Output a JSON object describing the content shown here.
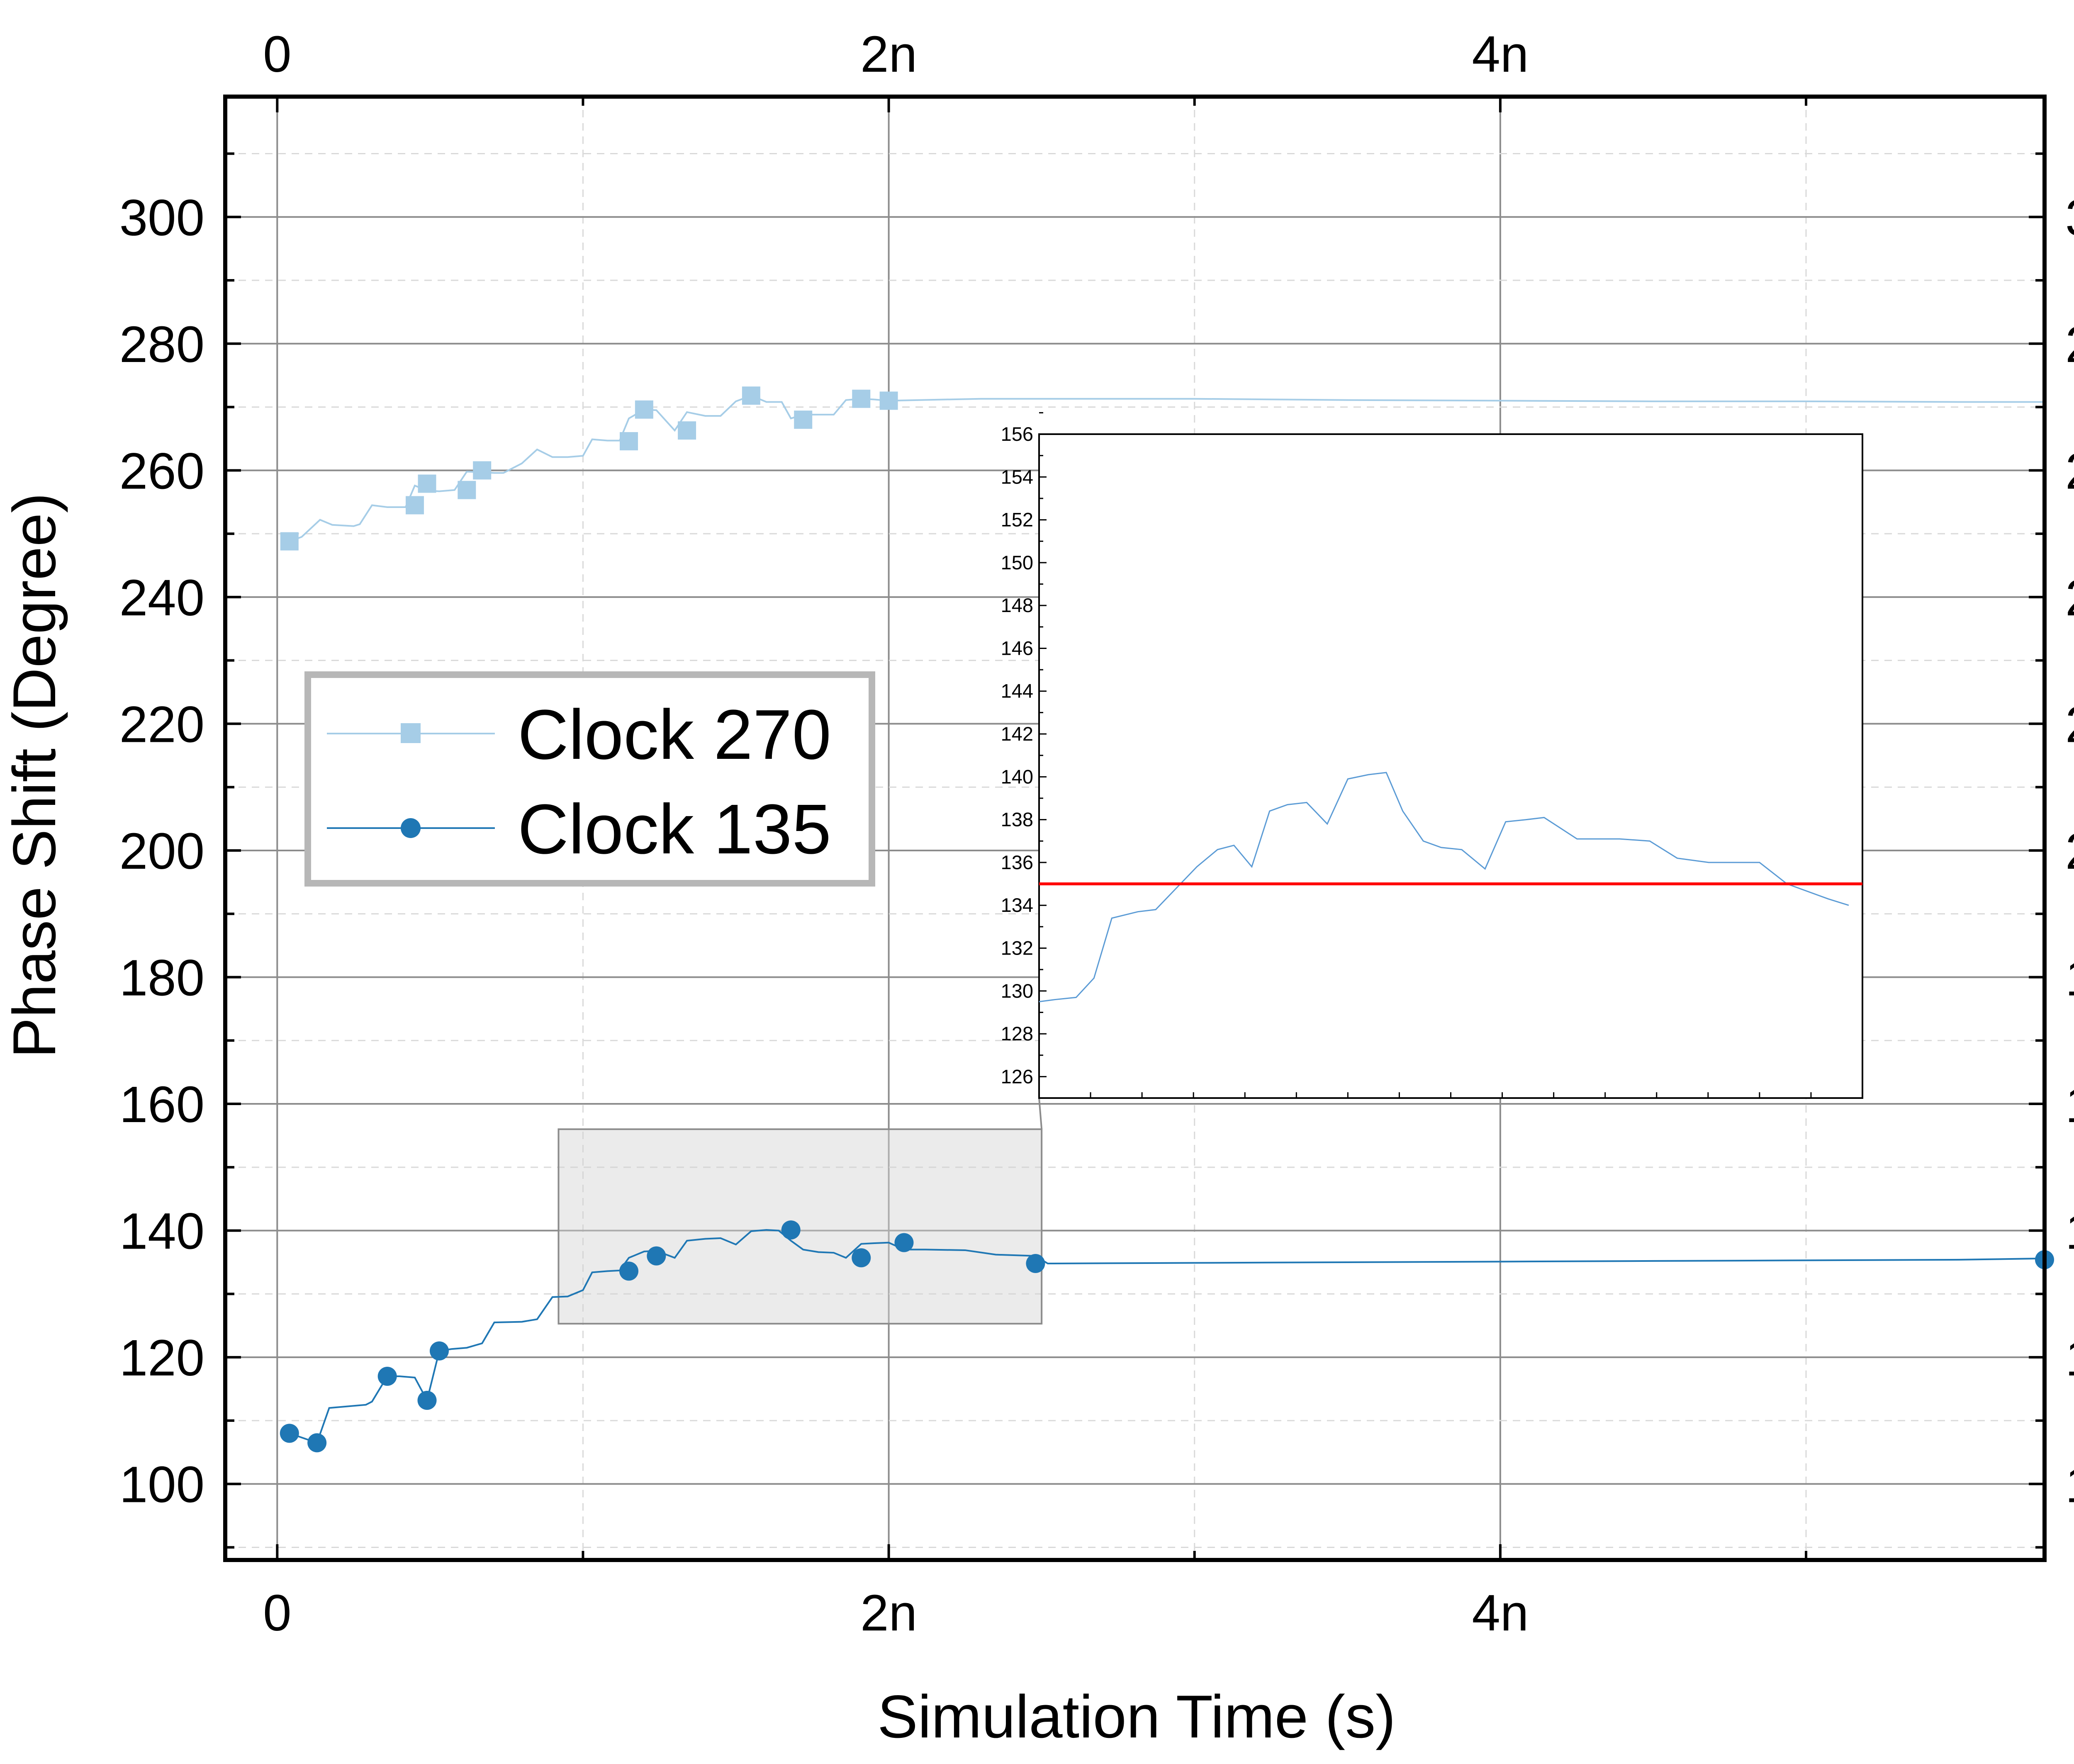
{
  "chart_data": {
    "type": "line",
    "xlabel": "Simulation Time (s)",
    "ylabel": "Phase Shift (Degree)",
    "xlim": [
      -1.7e-10,
      5.78e-09
    ],
    "ylim": [
      88,
      319
    ],
    "x_ticks": [
      0,
      2e-09,
      4e-09
    ],
    "x_tick_labels": [
      "0",
      "2n",
      "4n"
    ],
    "y_ticks": [
      100,
      120,
      140,
      160,
      180,
      200,
      220,
      240,
      260,
      280,
      300
    ],
    "y_tick_labels": [
      "100",
      "120",
      "140",
      "160",
      "180",
      "200",
      "220",
      "240",
      "260",
      "280",
      "300"
    ],
    "grid": true,
    "legend_position": "center-left",
    "series": [
      {
        "name": "Clock 270",
        "color": "#a6cde7",
        "marker": "square",
        "x": [
          4e-11,
          8e-11,
          1.4e-10,
          1.8e-10,
          2.5e-10,
          2.7e-10,
          3.1e-10,
          3.6e-10,
          4.2e-10,
          4.5e-10,
          4.9e-10,
          5.3e-10,
          5.8e-10,
          6.2e-10,
          6.7e-10,
          7.1e-10,
          7.4e-10,
          8e-10,
          8.5e-10,
          9e-10,
          9.5e-10,
          1e-09,
          1.03e-09,
          1.08e-09,
          1.12e-09,
          1.15e-09,
          1.2e-09,
          1.24e-09,
          1.3e-09,
          1.34e-09,
          1.4e-09,
          1.45e-09,
          1.5e-09,
          1.55e-09,
          1.6e-09,
          1.65e-09,
          1.68e-09,
          1.72e-09,
          1.77e-09,
          1.82e-09,
          1.86e-09,
          1.91e-09,
          1.95e-09,
          2e-09,
          2.3e-09,
          3e-09,
          3.5e-09,
          4e-09,
          4.5e-09,
          5e-09,
          5.5e-09,
          5.78e-09
        ],
        "y": [
          248.8,
          249.5,
          252.2,
          251.4,
          251.2,
          251.5,
          254.5,
          254.2,
          254.2,
          257.6,
          256.8,
          256.7,
          256.9,
          259.8,
          259.7,
          259.6,
          259.6,
          261.1,
          263.3,
          262.1,
          262.1,
          262.3,
          264.9,
          264.7,
          264.7,
          268.2,
          269.6,
          269.5,
          266.3,
          269.2,
          268.6,
          268.6,
          270.9,
          271.8,
          270.8,
          270.8,
          268.2,
          268.8,
          268.8,
          268.8,
          271.1,
          271.3,
          271.2,
          271.0,
          271.3,
          271.3,
          271.1,
          271.0,
          270.9,
          270.9,
          270.8,
          270.8
        ],
        "markers_x": [
          4e-11,
          4.5e-10,
          4.9e-10,
          6.2e-10,
          6.7e-10,
          1.15e-09,
          1.2e-09,
          1.34e-09,
          1.55e-09,
          1.72e-09,
          1.91e-09,
          2e-09
        ],
        "markers_y": [
          248.8,
          254.5,
          257.9,
          256.9,
          260.0,
          264.6,
          269.6,
          266.3,
          271.8,
          268.0,
          271.3,
          271.0
        ]
      },
      {
        "name": "Clock 135",
        "color": "#1f77b4",
        "marker": "circle",
        "x": [
          4e-11,
          1.3e-10,
          1.7e-10,
          2.9e-10,
          3.1e-10,
          3.6e-10,
          4e-10,
          4.5e-10,
          4.9e-10,
          5.3e-10,
          5.7e-10,
          6.2e-10,
          6.7e-10,
          7.1e-10,
          8e-10,
          8.5e-10,
          9e-10,
          9.5e-10,
          1e-09,
          1.03e-09,
          1.08e-09,
          1.12e-09,
          1.15e-09,
          1.2e-09,
          1.24e-09,
          1.3e-09,
          1.34e-09,
          1.4e-09,
          1.45e-09,
          1.5e-09,
          1.55e-09,
          1.6e-09,
          1.64e-09,
          1.68e-09,
          1.72e-09,
          1.77e-09,
          1.82e-09,
          1.86e-09,
          1.91e-09,
          1.95e-09,
          2e-09,
          2.05e-09,
          2.12e-09,
          2.25e-09,
          2.35e-09,
          2.48e-09,
          2.52e-09,
          3e-09,
          3.5e-09,
          4e-09,
          4.5e-09,
          5e-09,
          5.5e-09,
          5.78e-09
        ],
        "y": [
          108.0,
          106.5,
          112.0,
          112.5,
          113.0,
          117.0,
          117.0,
          116.8,
          113.2,
          121.0,
          121.3,
          121.5,
          122.2,
          125.5,
          125.6,
          126.0,
          129.5,
          129.6,
          130.6,
          133.4,
          133.6,
          133.7,
          135.7,
          136.7,
          136.8,
          135.7,
          138.4,
          138.7,
          138.8,
          137.8,
          139.9,
          140.1,
          140.0,
          138.4,
          137.0,
          136.6,
          136.5,
          135.7,
          137.9,
          138.0,
          138.1,
          137.0,
          137.0,
          136.9,
          136.2,
          136.0,
          134.8,
          134.9,
          135.0,
          135.1,
          135.2,
          135.3,
          135.4,
          135.6
        ],
        "markers_x": [
          4e-11,
          1.3e-10,
          3.6e-10,
          4.9e-10,
          5.3e-10,
          1.15e-09,
          1.24e-09,
          1.68e-09,
          1.91e-09,
          2.05e-09,
          2.48e-09,
          5.78e-09
        ],
        "markers_y": [
          108.0,
          106.5,
          117.0,
          113.2,
          121.0,
          133.6,
          136.0,
          140.1,
          135.7,
          138.1,
          134.8,
          135.4
        ]
      }
    ],
    "zoom_region": {
      "xlim": [
        9.2e-10,
        2.5e-09
      ],
      "ylim": [
        125.3,
        156
      ]
    },
    "inset": {
      "type": "line",
      "ylim": [
        125,
        156
      ],
      "y_ticks": [
        126,
        128,
        130,
        132,
        134,
        136,
        138,
        140,
        142,
        144,
        146,
        148,
        150,
        152,
        154,
        156
      ],
      "y_tick_labels": [
        "126",
        "128",
        "130",
        "132",
        "134",
        "136",
        "138",
        "140",
        "142",
        "144",
        "146",
        "148",
        "150",
        "152",
        "154",
        "156"
      ],
      "x_minor_ticks": 16,
      "reference_line": {
        "y": 135,
        "color": "#ff0000"
      },
      "series": {
        "color": "#5b9bd5",
        "x": [
          0,
          1.2,
          2.7,
          4,
          5.3,
          7.2,
          8.5,
          10,
          11.5,
          13,
          14.2,
          15.5,
          16.8,
          18.1,
          19.5,
          21,
          22.5,
          24,
          25.3,
          26.5,
          28,
          29.3,
          30.8,
          32.5,
          34,
          35.5,
          36.8,
          38,
          39.2,
          40.8,
          42.3,
          44.5,
          46.5,
          48.8,
          51,
          52.5,
          54.5,
          57.5,
          59
        ],
        "y": [
          129.5,
          129.6,
          129.7,
          130.6,
          133.4,
          133.7,
          133.8,
          134.8,
          135.8,
          136.6,
          136.8,
          135.8,
          138.4,
          138.7,
          138.8,
          137.8,
          139.9,
          140.1,
          140.2,
          138.4,
          137.0,
          136.7,
          136.6,
          135.7,
          137.9,
          138.0,
          138.1,
          137.6,
          137.1,
          137.1,
          137.1,
          137.0,
          136.2,
          136.0,
          136.0,
          136.0,
          135.0,
          134.3,
          134.0
        ]
      }
    }
  }
}
